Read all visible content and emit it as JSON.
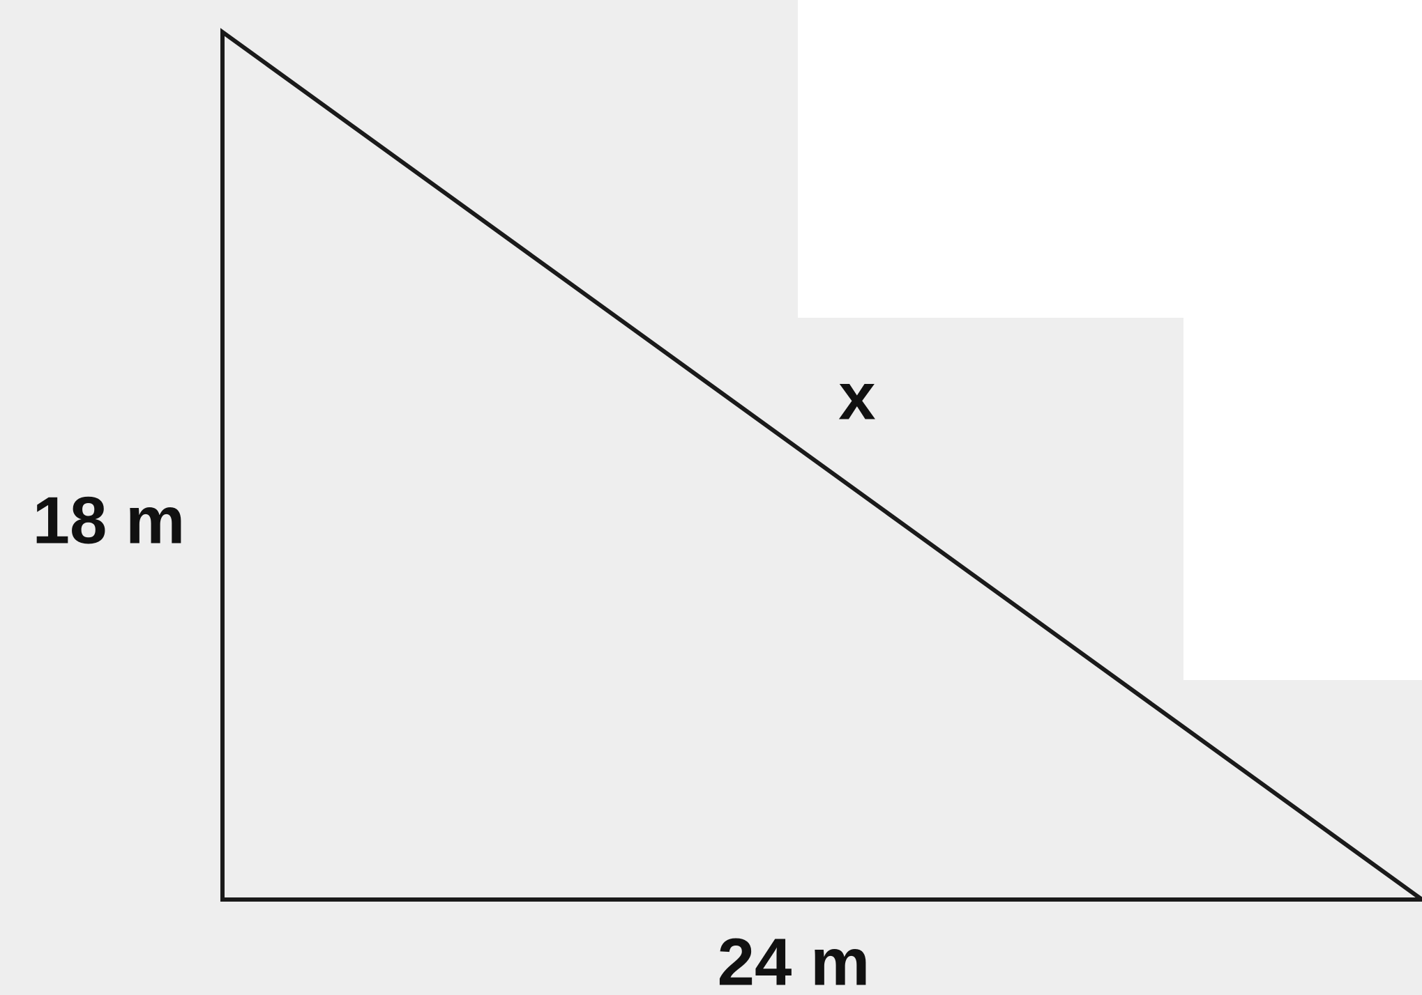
{
  "diagram": {
    "labels": {
      "left": "18 m",
      "bottom": "24 m",
      "hypotenuse": "x"
    }
  }
}
